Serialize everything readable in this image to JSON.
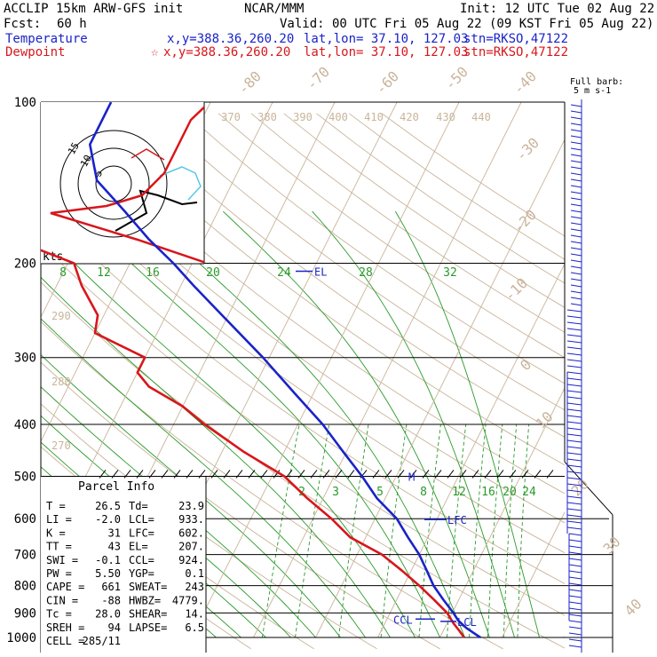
{
  "header": {
    "model": "ACCLIP 15km ARW-GFS init",
    "center": "NCAR/MMM",
    "init": "Init: 12 UTC Tue 02 Aug 22",
    "fcst_label": "Fcst:",
    "fcst_value": "60 h",
    "valid": "Valid: 00 UTC Fri 05 Aug 22 (09 KST Fri 05 Aug 22)",
    "temp_legend": "Temperature",
    "temp_xy": "x,y=388.36,260.20",
    "temp_latlon": "lat,lon= 37.10, 127.03",
    "temp_stn": "stn=RKSO,47122",
    "dew_legend": "Dewpoint",
    "dew_star": "☆",
    "dew_xy": "x,y=388.36,260.20",
    "dew_latlon": "lat,lon= 37.10, 127.03",
    "dew_stn": "stn=RKSO,47122"
  },
  "barb_legend": {
    "line1": "Full barb:",
    "line2": "5 m s-1"
  },
  "hodo_label": "kts",
  "parcel": {
    "title": "Parcel Info",
    "rows": [
      {
        "k1": "T",
        "v1": "26.5",
        "k2": "Td",
        "v2": "23.9"
      },
      {
        "k1": "LI",
        "v1": "-2.0",
        "k2": "LCL",
        "v2": "933."
      },
      {
        "k1": "K",
        "v1": "31",
        "k2": "LFC",
        "v2": "602."
      },
      {
        "k1": "TT",
        "v1": "43",
        "k2": "EL",
        "v2": "207."
      },
      {
        "k1": "SWI",
        "v1": "-0.1",
        "k2": "CCL",
        "v2": "924."
      },
      {
        "k1": "PW",
        "v1": "5.50",
        "k2": "YGP",
        "v2": "0.1"
      },
      {
        "k1": "CAPE",
        "v1": "661",
        "k2": "SWEAT",
        "v2": "243"
      },
      {
        "k1": "CIN",
        "v1": "-88",
        "k2": "HWBZ",
        "v2": "4779."
      },
      {
        "k1": "Tc",
        "v1": "28.0",
        "k2": "SHEAR",
        "v2": "14."
      },
      {
        "k1": "SREH",
        "v1": "94",
        "k2": "LAPSE",
        "v2": "6.5"
      },
      {
        "k1": "CELL",
        "v1": "285/11",
        "k2": "",
        "v2": ""
      }
    ]
  },
  "chart_data": {
    "type": "line",
    "title": "",
    "ylabel": "",
    "y_scale": "log",
    "ylim": [
      1000,
      100
    ],
    "y_ticks": [
      "100",
      "200",
      "300",
      "400",
      "500",
      "600",
      "700",
      "800",
      "900",
      "1000"
    ],
    "isotherm_labels": [
      "-80",
      "-70",
      "-60",
      "-50",
      "-40",
      "-30",
      "-20",
      "-10",
      "0",
      "10",
      "20",
      "30",
      "40"
    ],
    "theta_labels": [
      "370",
      "380",
      "390",
      "400",
      "410",
      "420",
      "430",
      "440",
      "290",
      "280",
      "270"
    ],
    "mixing_labels_top": [
      "8",
      "12",
      "16",
      "20",
      "24",
      "28",
      "32"
    ],
    "mixing_labels_bottom": [
      "2",
      "3",
      "5",
      "8",
      "12",
      "16",
      "20",
      "24"
    ],
    "levels": [
      {
        "name": "EL",
        "pressure": 207
      },
      {
        "name": "LFC",
        "pressure": 602
      },
      {
        "name": "LCL",
        "pressure": 933
      },
      {
        "name": "CCL",
        "pressure": 924
      },
      {
        "name": "M",
        "pressure": 500
      }
    ],
    "series": [
      {
        "name": "Temperature",
        "color": "#1a23c8",
        "p": [
          1000,
          960,
          930,
          900,
          850,
          800,
          750,
          700,
          650,
          600,
          550,
          500,
          450,
          400,
          350,
          300,
          250,
          220,
          200,
          180,
          160,
          140,
          120,
          100
        ],
        "t": [
          26.5,
          23.5,
          21.6,
          20.2,
          17.5,
          14.8,
          12.5,
          10.0,
          6.8,
          3.5,
          -1.3,
          -5.5,
          -10.5,
          -16.0,
          -23.0,
          -31.0,
          -41.0,
          -48.0,
          -53.0,
          -59.0,
          -65.0,
          -72.0,
          -76.0,
          -76.0
        ]
      },
      {
        "name": "Dewpoint",
        "color": "#d8161b",
        "p": [
          1000,
          970,
          940,
          900,
          850,
          800,
          750,
          700,
          650,
          600,
          550,
          500,
          450,
          400,
          370,
          340,
          320,
          300,
          270,
          250,
          220,
          200,
          180,
          160,
          140,
          120,
          100
        ],
        "t": [
          23.9,
          22.5,
          21.0,
          19.2,
          16.0,
          12.5,
          8.5,
          4.0,
          -2.5,
          -7.0,
          -12.5,
          -18.0,
          -26.5,
          -35.0,
          -40.0,
          -47.0,
          -50.0,
          -50.0,
          -60.0,
          -61.0,
          -66.0,
          -69.0,
          -81.0,
          -95.0,
          -120.0,
          -105.0,
          -90.0
        ]
      }
    ],
    "hodograph": {
      "rings": [
        "5",
        "10",
        "15"
      ]
    }
  }
}
